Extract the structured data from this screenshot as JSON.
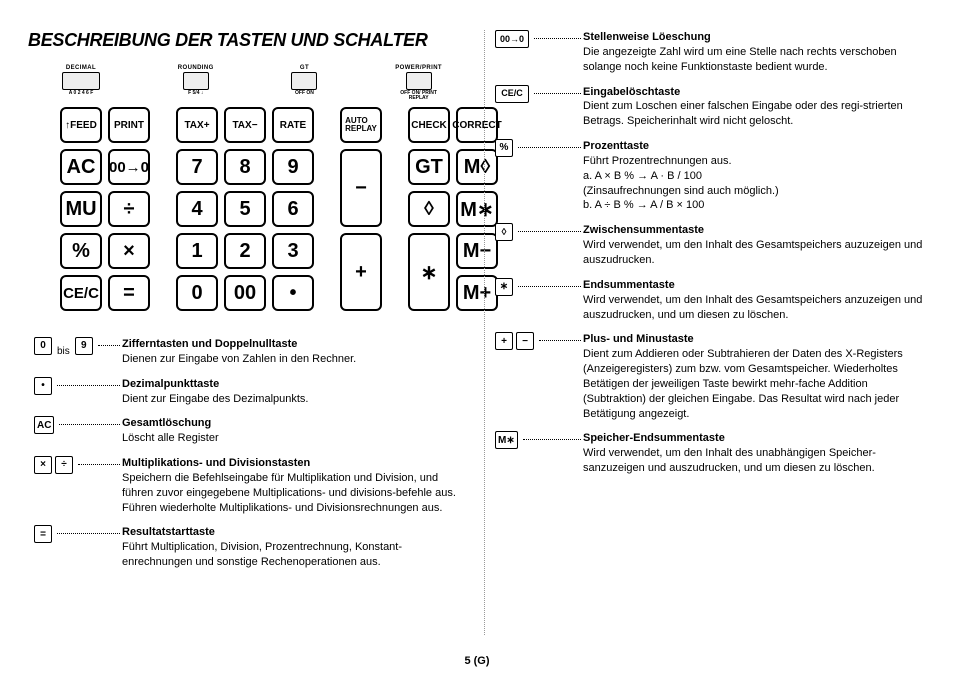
{
  "title": "BESCHREIBUNG DER TASTEN UND SCHALTER",
  "footer": "5 (G)",
  "switches": {
    "s1": {
      "label": "DECIMAL",
      "sub": "A 0 2 4 6 F"
    },
    "s2": {
      "label": "ROUNDING",
      "sub": "F 5/4 ↓"
    },
    "s3": {
      "label": "GT",
      "sub": "OFF ON"
    },
    "s4": {
      "label": "POWER/PRINT",
      "sub": "OFF ON/ PRINT\nREPLAY"
    }
  },
  "keys": {
    "r0": [
      "↑FEED",
      "PRINT",
      "TAX+",
      "TAX−",
      "RATE",
      "AUTO\nREPLAY",
      "CHECK",
      "CORRECT"
    ],
    "r1": [
      "AC",
      "00→0",
      "7",
      "8",
      "9",
      "−",
      "GT",
      "M◊"
    ],
    "r2": [
      "MU",
      "÷",
      "4",
      "5",
      "6",
      "◊",
      "M∗"
    ],
    "r3": [
      "%",
      "×",
      "1",
      "2",
      "3",
      "+",
      "∗",
      "M−"
    ],
    "r4": [
      "CE/C",
      "=",
      "0",
      "00",
      "•",
      "M+"
    ]
  },
  "left": [
    {
      "icons": [
        {
          "t": "0"
        },
        {
          "mid": "bis"
        },
        {
          "t": "9"
        }
      ],
      "title": "Zifferntasten und Doppelnulltaste",
      "body": "Dienen zur Eingabe von Zahlen in den Rechner."
    },
    {
      "icons": [
        {
          "t": "•"
        }
      ],
      "title": "Dezimalpunkttaste",
      "body": "Dient zur Eingabe des Dezimalpunkts."
    },
    {
      "icons": [
        {
          "t": "AC"
        }
      ],
      "title": "Gesamtlöschung",
      "body": "Löscht alle Register"
    },
    {
      "icons": [
        {
          "t": "×"
        },
        {
          "t": "÷"
        }
      ],
      "title": "Multiplikations- und Divisionstasten",
      "body": "Speichern die Befehlseingabe für Multiplikation und Division, und führen zuvor eingegebene Multiplications- und divisions-befehle aus. Führen wiederholte Multiplikations- und Divisionsrechnungen aus."
    },
    {
      "icons": [
        {
          "t": "="
        }
      ],
      "title": "Resultatstarttaste",
      "body": "Führt Multiplication, Division, Prozentrechnung, Konstant-enrechnungen und sonstige Rechenoperationen aus."
    }
  ],
  "right": [
    {
      "icons": [
        {
          "t": "00→0",
          "wide": true
        }
      ],
      "title": "Stellenweise Löeschung",
      "body": "Die angezeigte Zahl wird um eine Stelle nach rechts verschoben solange noch keine Funktionstaste bedient wurde."
    },
    {
      "icons": [
        {
          "t": "CE/C",
          "wide": true
        }
      ],
      "title": "Eingabelöschtaste",
      "body": "Dient zum Loschen einer falschen Eingabe oder des regi-strierten Betrags. Speicherinhalt wird nicht geloscht."
    },
    {
      "icons": [
        {
          "t": "%"
        }
      ],
      "title": "Prozenttaste",
      "body": "Führt Prozentrechnungen aus.\na.  A × B % → A · B / 100\n     (Zinsaufrechnungen sind auch möglich.)\nb.  A ÷ B % → A / B × 100"
    },
    {
      "icons": [
        {
          "t": "◊"
        }
      ],
      "title": "Zwischensummentaste",
      "body": "Wird verwendet, um den Inhalt des Gesamtspeichers auzuzeigen und auszudrucken."
    },
    {
      "icons": [
        {
          "t": "∗"
        }
      ],
      "title": "Endsummentaste",
      "body": "Wird verwendet, um den Inhalt des Gesamtspeichers anzuzeigen und auszudrucken, und um diesen zu löschen."
    },
    {
      "icons": [
        {
          "t": "+"
        },
        {
          "t": "−"
        }
      ],
      "title": "Plus- und Minustaste",
      "body": "Dient zum Addieren oder Subtrahieren der Daten des X-Registers (Anzeigeregisters) zum bzw. vom Gesamtspeicher. Wiederholtes Betätigen der jeweiligen Taste bewirkt mehr-fache Addition (Subtraktion) der gleichen Eingabe. Das Resultat wird nach jeder Betätigung angezeigt."
    },
    {
      "icons": [
        {
          "t": "M∗"
        }
      ],
      "title": "Speicher-Endsummentaste",
      "body": "Wird verwendet, um den Inhalt des unabhängigen Speicher-sanzuzeigen und auszudrucken, und um diesen zu löschen."
    }
  ]
}
